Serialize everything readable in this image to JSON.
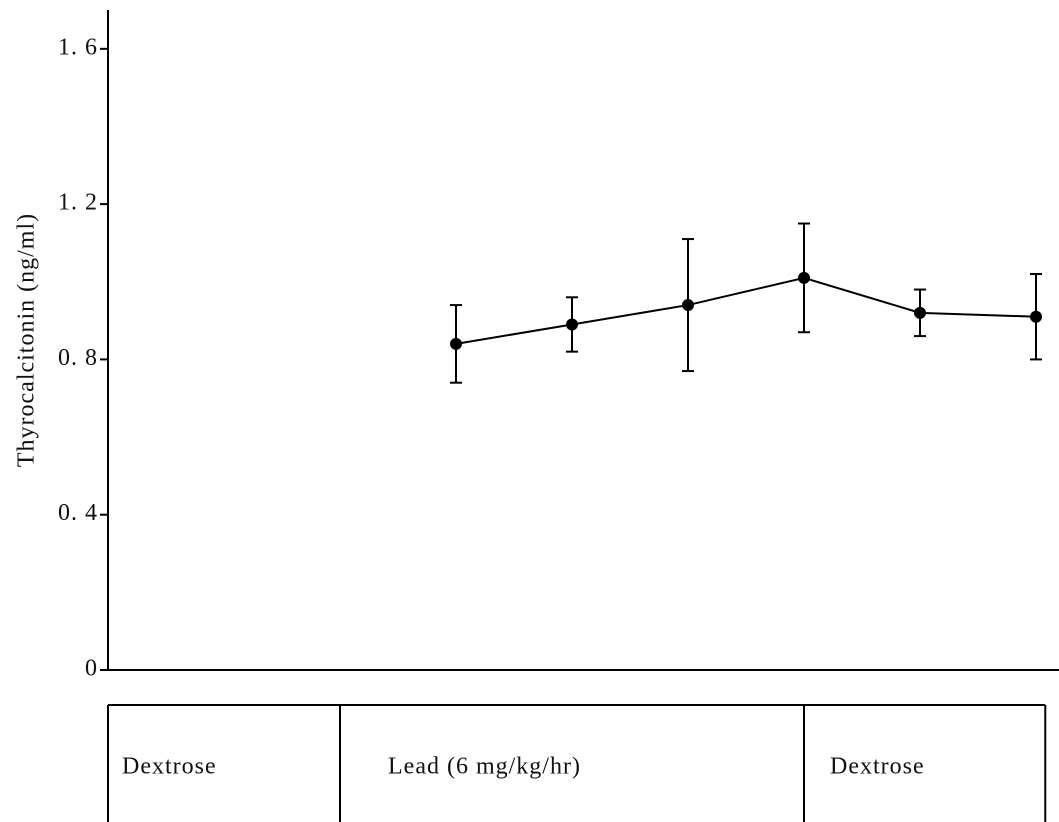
{
  "chart_data": {
    "type": "line",
    "ylabel": "Thyrocalcitonin (ng/ml)",
    "categories": [
      null,
      null,
      null,
      null,
      null,
      null,
      null,
      null,
      null
    ],
    "series": [
      {
        "color": "#000000",
        "values": [
          null,
          null,
          null,
          0.84,
          0.89,
          0.94,
          1.01,
          0.92,
          0.91
        ],
        "errors": [
          null,
          null,
          null,
          0.1,
          0.07,
          0.17,
          0.14,
          0.06,
          0.11
        ]
      }
    ],
    "ylim": [
      0,
      1.7
    ],
    "yticks": [
      0,
      {
        "value": 0.4,
        "label": "0. 4"
      },
      {
        "value": 0.8,
        "label": "0. 8"
      },
      {
        "value": 1.2,
        "label": "1. 2"
      },
      {
        "value": 1.6,
        "label": "1. 6"
      }
    ],
    "phases": [
      "Dextrose",
      "Lead (6 mg/kg/hr)",
      "Dextrose"
    ]
  }
}
